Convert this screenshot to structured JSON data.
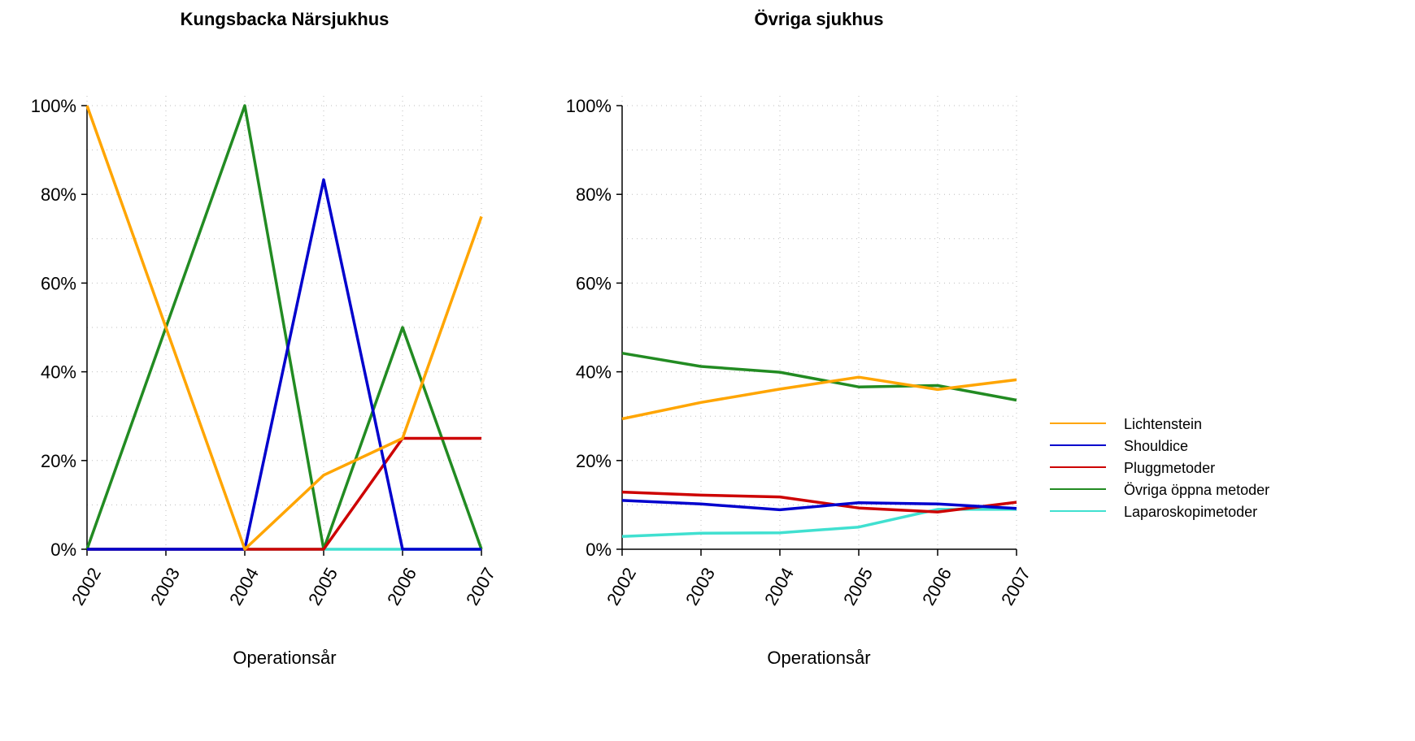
{
  "chart_data": [
    {
      "type": "line",
      "title": "Kungsbacka Närsjukhus",
      "xlabel": "Operationsår",
      "ylabel": "",
      "x": [
        "2002",
        "2003",
        "2004",
        "2005",
        "2006",
        "2007"
      ],
      "ylim": [
        0,
        100
      ],
      "yticks": [
        "0%",
        "20%",
        "40%",
        "60%",
        "80%",
        "100%"
      ],
      "grid": true,
      "series": [
        {
          "name": "Lichtenstein",
          "color": "#FFA500",
          "values": [
            100,
            50,
            0,
            16.7,
            25,
            75
          ]
        },
        {
          "name": "Shouldice",
          "color": "#0000CD",
          "values": [
            0,
            0,
            0,
            83.3,
            0,
            0
          ]
        },
        {
          "name": "Pluggmetoder",
          "color": "#CD0000",
          "values": [
            0,
            0,
            0,
            0,
            25,
            25
          ]
        },
        {
          "name": "Övriga öppna metoder",
          "color": "#228B22",
          "values": [
            0,
            50,
            100,
            0,
            50,
            0
          ]
        },
        {
          "name": "Laparoskopimetoder",
          "color": "#40E0D0",
          "values": [
            0,
            0,
            0,
            0,
            0,
            0
          ]
        }
      ]
    },
    {
      "type": "line",
      "title": "Övriga sjukhus",
      "xlabel": "Operationsår",
      "ylabel": "",
      "x": [
        "2002",
        "2003",
        "2004",
        "2005",
        "2006",
        "2007"
      ],
      "ylim": [
        0,
        100
      ],
      "yticks": [
        "0%",
        "20%",
        "40%",
        "60%",
        "80%",
        "100%"
      ],
      "grid": true,
      "series": [
        {
          "name": "Lichtenstein",
          "color": "#FFA500",
          "values": [
            29.4,
            33.1,
            36.1,
            38.8,
            36.0,
            38.2
          ]
        },
        {
          "name": "Shouldice",
          "color": "#0000CD",
          "values": [
            11.0,
            10.2,
            8.9,
            10.5,
            10.2,
            9.2
          ]
        },
        {
          "name": "Pluggmetoder",
          "color": "#CD0000",
          "values": [
            12.9,
            12.2,
            11.8,
            9.3,
            8.4,
            10.6
          ]
        },
        {
          "name": "Övriga öppna metoder",
          "color": "#228B22",
          "values": [
            44.2,
            41.2,
            39.9,
            36.6,
            36.9,
            33.6
          ]
        },
        {
          "name": "Laparoskopimetoder",
          "color": "#40E0D0",
          "values": [
            2.9,
            3.6,
            3.7,
            5.0,
            9.0,
            9.0
          ]
        }
      ]
    }
  ],
  "legend": {
    "placement": "right",
    "items": [
      {
        "label": "Lichtenstein",
        "color": "#FFA500"
      },
      {
        "label": "Shouldice",
        "color": "#0000CD"
      },
      {
        "label": "Pluggmetoder",
        "color": "#CD0000"
      },
      {
        "label": "Övriga öppna metoder",
        "color": "#228B22"
      },
      {
        "label": "Laparoskopimetoder",
        "color": "#40E0D0"
      }
    ]
  }
}
